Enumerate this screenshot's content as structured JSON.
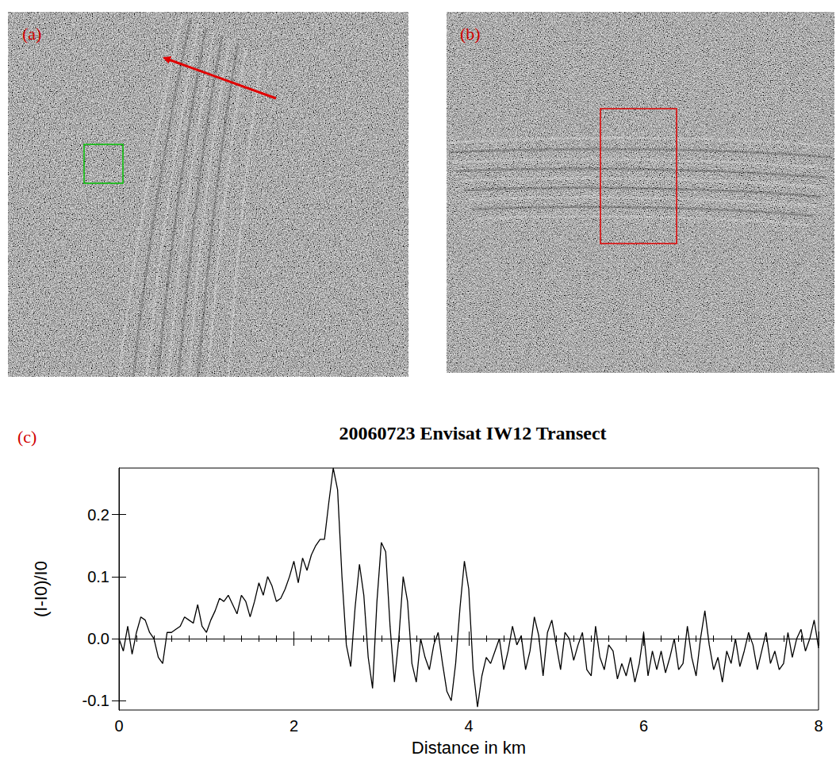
{
  "figure": {
    "panels": [
      "(a)",
      "(b)",
      "(c)"
    ]
  },
  "chart_data": {
    "type": "line",
    "title": "20060723 Envisat IW12 Transect",
    "x_label": "Distance in km",
    "y_label": "(I-I0)/I0",
    "color": "#000000",
    "grid": false,
    "hline": 0,
    "xlim": [
      0,
      8
    ],
    "xticks": [
      0,
      2,
      4,
      6,
      8
    ],
    "ylim": [
      -0.115,
      0.275
    ],
    "yticks": [
      -0.1,
      {
        "value": 0,
        "label": "0.0"
      },
      0.1,
      0.2
    ],
    "x": [
      0,
      0.05,
      0.1,
      0.15,
      0.2,
      0.25,
      0.3,
      0.35,
      0.4,
      0.45,
      0.5,
      0.55,
      0.6,
      0.65,
      0.7,
      0.75,
      0.8,
      0.85,
      0.9,
      0.95,
      1.0,
      1.05,
      1.1,
      1.15,
      1.2,
      1.25,
      1.3,
      1.35,
      1.4,
      1.45,
      1.5,
      1.55,
      1.6,
      1.65,
      1.7,
      1.75,
      1.8,
      1.85,
      1.9,
      1.95,
      2.0,
      2.05,
      2.1,
      2.15,
      2.2,
      2.25,
      2.3,
      2.35,
      2.4,
      2.45,
      2.5,
      2.55,
      2.6,
      2.65,
      2.7,
      2.75,
      2.8,
      2.85,
      2.9,
      2.95,
      3.0,
      3.05,
      3.1,
      3.15,
      3.2,
      3.25,
      3.3,
      3.35,
      3.4,
      3.45,
      3.5,
      3.55,
      3.6,
      3.65,
      3.7,
      3.75,
      3.8,
      3.85,
      3.9,
      3.95,
      4.0,
      4.05,
      4.1,
      4.15,
      4.2,
      4.25,
      4.3,
      4.35,
      4.4,
      4.45,
      4.5,
      4.55,
      4.6,
      4.65,
      4.7,
      4.75,
      4.8,
      4.85,
      4.9,
      4.95,
      5.0,
      5.05,
      5.1,
      5.15,
      5.2,
      5.25,
      5.3,
      5.35,
      5.4,
      5.45,
      5.5,
      5.55,
      5.6,
      5.65,
      5.7,
      5.75,
      5.8,
      5.85,
      5.9,
      5.95,
      6.0,
      6.05,
      6.1,
      6.15,
      6.2,
      6.25,
      6.3,
      6.35,
      6.4,
      6.45,
      6.5,
      6.55,
      6.6,
      6.65,
      6.7,
      6.75,
      6.8,
      6.85,
      6.9,
      6.95,
      7.0,
      7.05,
      7.1,
      7.15,
      7.2,
      7.25,
      7.3,
      7.35,
      7.4,
      7.45,
      7.5,
      7.55,
      7.6,
      7.65,
      7.7,
      7.75,
      7.8,
      7.85,
      7.9,
      7.95,
      8.0
    ],
    "values": [
      0,
      -0.02,
      0.02,
      -0.025,
      0.01,
      0.035,
      0.03,
      0.01,
      0.0,
      -0.03,
      -0.04,
      0.01,
      0.01,
      0.015,
      0.02,
      0.035,
      0.03,
      0.025,
      0.055,
      0.02,
      0.01,
      0.03,
      0.045,
      0.065,
      0.06,
      0.07,
      0.055,
      0.04,
      0.07,
      0.06,
      0.035,
      0.06,
      0.09,
      0.07,
      0.1,
      0.085,
      0.06,
      0.065,
      0.08,
      0.1,
      0.125,
      0.09,
      0.13,
      0.11,
      0.135,
      0.15,
      0.16,
      0.16,
      0.22,
      0.275,
      0.24,
      0.1,
      -0.01,
      -0.045,
      0.05,
      0.12,
      0.07,
      -0.03,
      -0.08,
      0.06,
      0.155,
      0.14,
      0.02,
      -0.07,
      0.0,
      0.1,
      0.06,
      -0.04,
      -0.07,
      0.0,
      -0.03,
      -0.05,
      -0.01,
      0.01,
      -0.04,
      -0.085,
      -0.1,
      -0.04,
      0.05,
      0.125,
      0.08,
      -0.05,
      -0.11,
      -0.06,
      -0.03,
      -0.04,
      -0.02,
      0.0,
      -0.05,
      -0.02,
      0.02,
      -0.01,
      0.005,
      -0.05,
      -0.02,
      0.035,
      0.005,
      -0.06,
      0.01,
      0.03,
      -0.01,
      -0.05,
      0.01,
      0.0,
      -0.035,
      -0.01,
      0.01,
      -0.05,
      -0.06,
      0.02,
      -0.03,
      -0.05,
      -0.01,
      -0.02,
      -0.065,
      -0.04,
      -0.06,
      -0.03,
      -0.07,
      -0.04,
      0.01,
      -0.06,
      -0.02,
      -0.05,
      -0.02,
      -0.055,
      -0.03,
      0.0,
      -0.05,
      -0.04,
      0.02,
      -0.03,
      -0.06,
      0.0,
      0.045,
      -0.01,
      -0.05,
      -0.03,
      -0.07,
      -0.02,
      -0.04,
      0.0,
      -0.045,
      -0.02,
      0.01,
      -0.01,
      -0.05,
      -0.02,
      0.01,
      -0.04,
      -0.02,
      -0.05,
      -0.04,
      0.01,
      -0.03,
      0.0,
      0.015,
      -0.02,
      0.0,
      0.03,
      -0.015
    ]
  }
}
